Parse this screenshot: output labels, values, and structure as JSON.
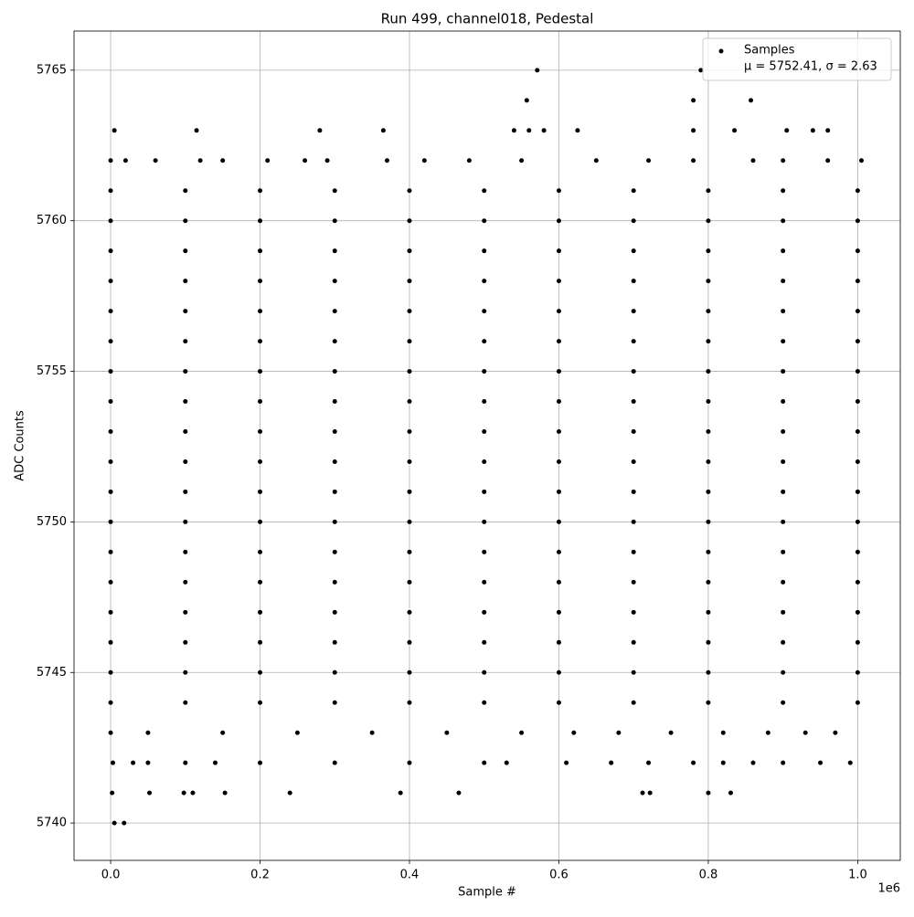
{
  "chart_data": {
    "type": "scatter",
    "title": "Run 499, channel018, Pedestal",
    "x_label": "Sample #",
    "y_label": "ADC Counts",
    "x_offset_label": "1e6",
    "legend_note": "μ = 5752.41, σ = 2.63",
    "legend": "upper right",
    "grid": true,
    "xlim": [
      -0.049,
      1.057
    ],
    "ylim": [
      5738.76,
      5766.3
    ],
    "xticks": [
      {
        "value": 0,
        "label": "0.0"
      },
      {
        "value": 0.2,
        "label": "0.2"
      },
      {
        "value": 0.4,
        "label": "0.4"
      },
      {
        "value": 0.6,
        "label": "0.6"
      },
      {
        "value": 0.8,
        "label": "0.8"
      },
      {
        "value": 1.0,
        "label": "1.0"
      }
    ],
    "yticks": [
      5740,
      5745,
      5750,
      5755,
      5760,
      5765
    ],
    "series": [
      {
        "name": "Samples",
        "color": "#000000",
        "x": [
          0,
          0.1,
          0.2,
          0.3,
          0.4,
          0.5,
          0.6,
          0.7,
          0.8,
          0.9,
          1.0,
          0,
          0.1,
          0.2,
          0.3,
          0.4,
          0.5,
          0.6,
          0.7,
          0.8,
          0.9,
          1.0,
          0,
          0.1,
          0.2,
          0.3,
          0.4,
          0.5,
          0.6,
          0.7,
          0.8,
          0.9,
          1.0,
          0,
          0.1,
          0.2,
          0.3,
          0.4,
          0.5,
          0.6,
          0.7,
          0.8,
          0.9,
          1.0,
          0,
          0.1,
          0.2,
          0.3,
          0.4,
          0.5,
          0.6,
          0.7,
          0.8,
          0.9,
          1.0,
          0,
          0.1,
          0.2,
          0.3,
          0.4,
          0.5,
          0.6,
          0.7,
          0.8,
          0.9,
          1.0,
          0,
          0.1,
          0.2,
          0.3,
          0.4,
          0.5,
          0.6,
          0.7,
          0.8,
          0.9,
          1.0,
          0,
          0.1,
          0.2,
          0.3,
          0.4,
          0.5,
          0.6,
          0.7,
          0.8,
          0.9,
          1.0,
          0,
          0.1,
          0.2,
          0.3,
          0.4,
          0.5,
          0.6,
          0.7,
          0.8,
          0.9,
          1.0,
          0,
          0.1,
          0.2,
          0.3,
          0.4,
          0.5,
          0.6,
          0.7,
          0.8,
          0.9,
          1.0,
          0,
          0.1,
          0.2,
          0.3,
          0.4,
          0.5,
          0.6,
          0.7,
          0.8,
          0.9,
          1.0,
          0,
          0.1,
          0.2,
          0.3,
          0.4,
          0.5,
          0.6,
          0.7,
          0.8,
          0.9,
          1.0,
          0,
          0.1,
          0.2,
          0.3,
          0.4,
          0.5,
          0.6,
          0.7,
          0.8,
          0.9,
          1.0,
          0,
          0.1,
          0.2,
          0.3,
          0.4,
          0.5,
          0.6,
          0.7,
          0.8,
          0.9,
          1.0,
          0,
          0.1,
          0.2,
          0.3,
          0.4,
          0.5,
          0.6,
          0.7,
          0.8,
          0.9,
          1.0,
          0,
          0.1,
          0.2,
          0.3,
          0.4,
          0.5,
          0.6,
          0.7,
          0.8,
          0.9,
          1.0,
          0,
          0.1,
          0.2,
          0.3,
          0.4,
          0.5,
          0.6,
          0.7,
          0.8,
          0.9,
          1.0,
          0,
          0.1,
          0.2,
          0.3,
          0.4,
          0.5,
          0.6,
          0.7,
          0.8,
          0.9,
          1.0,
          0.005,
          0.018,
          0.002,
          0.052,
          0.098,
          0.11,
          0.153,
          0.24,
          0.388,
          0.466,
          0.712,
          0.722,
          0.8,
          0.83,
          0.003,
          0.03,
          0.05,
          0.1,
          0.14,
          0.2,
          0.3,
          0.4,
          0.5,
          0.53,
          0.61,
          0.67,
          0.72,
          0.78,
          0.82,
          0.86,
          0.9,
          0.95,
          0.99,
          0.0,
          0.05,
          0.15,
          0.25,
          0.35,
          0.45,
          0.55,
          0.62,
          0.68,
          0.75,
          0.82,
          0.88,
          0.93,
          0.97,
          0.0,
          0.02,
          0.06,
          0.12,
          0.15,
          0.21,
          0.26,
          0.29,
          0.37,
          0.42,
          0.48,
          0.55,
          0.65,
          0.72,
          0.78,
          0.86,
          0.9,
          0.96,
          1.005,
          0.005,
          0.115,
          0.28,
          0.365,
          0.54,
          0.56,
          0.58,
          0.625,
          0.78,
          0.835,
          0.905,
          0.94,
          0.96,
          0.557,
          0.78,
          0.857,
          0.571,
          0.79
        ],
        "y": [
          5744,
          5744,
          5744,
          5744,
          5744,
          5744,
          5744,
          5744,
          5744,
          5744,
          5744,
          5745,
          5745,
          5745,
          5745,
          5745,
          5745,
          5745,
          5745,
          5745,
          5745,
          5745,
          5746,
          5746,
          5746,
          5746,
          5746,
          5746,
          5746,
          5746,
          5746,
          5746,
          5746,
          5747,
          5747,
          5747,
          5747,
          5747,
          5747,
          5747,
          5747,
          5747,
          5747,
          5747,
          5748,
          5748,
          5748,
          5748,
          5748,
          5748,
          5748,
          5748,
          5748,
          5748,
          5748,
          5749,
          5749,
          5749,
          5749,
          5749,
          5749,
          5749,
          5749,
          5749,
          5749,
          5749,
          5750,
          5750,
          5750,
          5750,
          5750,
          5750,
          5750,
          5750,
          5750,
          5750,
          5750,
          5751,
          5751,
          5751,
          5751,
          5751,
          5751,
          5751,
          5751,
          5751,
          5751,
          5751,
          5752,
          5752,
          5752,
          5752,
          5752,
          5752,
          5752,
          5752,
          5752,
          5752,
          5752,
          5753,
          5753,
          5753,
          5753,
          5753,
          5753,
          5753,
          5753,
          5753,
          5753,
          5753,
          5754,
          5754,
          5754,
          5754,
          5754,
          5754,
          5754,
          5754,
          5754,
          5754,
          5754,
          5755,
          5755,
          5755,
          5755,
          5755,
          5755,
          5755,
          5755,
          5755,
          5755,
          5755,
          5756,
          5756,
          5756,
          5756,
          5756,
          5756,
          5756,
          5756,
          5756,
          5756,
          5756,
          5757,
          5757,
          5757,
          5757,
          5757,
          5757,
          5757,
          5757,
          5757,
          5757,
          5757,
          5758,
          5758,
          5758,
          5758,
          5758,
          5758,
          5758,
          5758,
          5758,
          5758,
          5758,
          5759,
          5759,
          5759,
          5759,
          5759,
          5759,
          5759,
          5759,
          5759,
          5759,
          5759,
          5760,
          5760,
          5760,
          5760,
          5760,
          5760,
          5760,
          5760,
          5760,
          5760,
          5760,
          5761,
          5761,
          5761,
          5761,
          5761,
          5761,
          5761,
          5761,
          5761,
          5761,
          5761,
          5740,
          5740,
          5741,
          5741,
          5741,
          5741,
          5741,
          5741,
          5741,
          5741,
          5741,
          5741,
          5741,
          5741,
          5742,
          5742,
          5742,
          5742,
          5742,
          5742,
          5742,
          5742,
          5742,
          5742,
          5742,
          5742,
          5742,
          5742,
          5742,
          5742,
          5742,
          5742,
          5742,
          5743,
          5743,
          5743,
          5743,
          5743,
          5743,
          5743,
          5743,
          5743,
          5743,
          5743,
          5743,
          5743,
          5743,
          5762,
          5762,
          5762,
          5762,
          5762,
          5762,
          5762,
          5762,
          5762,
          5762,
          5762,
          5762,
          5762,
          5762,
          5762,
          5762,
          5762,
          5762,
          5762,
          5763,
          5763,
          5763,
          5763,
          5763,
          5763,
          5763,
          5763,
          5763,
          5763,
          5763,
          5763,
          5763,
          5764,
          5764,
          5764,
          5765,
          5765
        ]
      }
    ]
  }
}
